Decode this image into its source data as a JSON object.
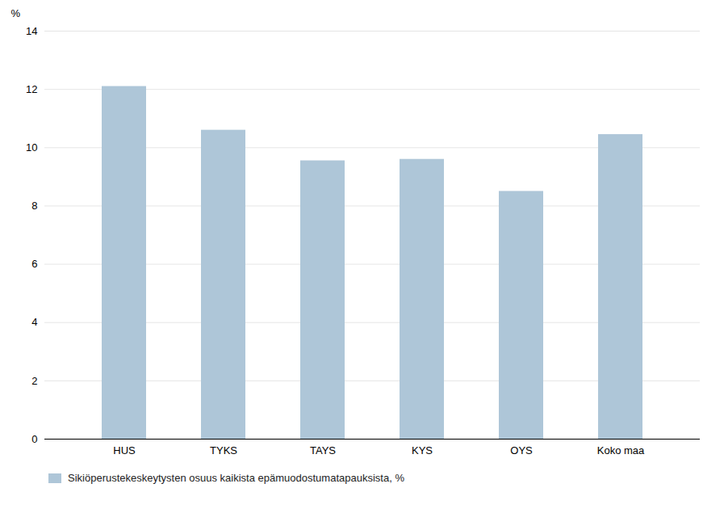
{
  "chart_data": {
    "type": "bar",
    "categories": [
      "HUS",
      "TYKS",
      "TAYS",
      "KYS",
      "OYS",
      "Koko maa"
    ],
    "series": [
      {
        "name": "Sikiöperustekeskeytysten osuus kaikista epämuodostumatapauksista, %",
        "color": "#aec6d8",
        "values": [
          12.1,
          10.6,
          9.55,
          9.6,
          8.5,
          10.45
        ]
      }
    ],
    "ylabel": "%",
    "ylim": [
      0,
      14
    ],
    "yticks": [
      0,
      2,
      4,
      6,
      8,
      10,
      12,
      14
    ],
    "grid": true,
    "legend": "bottom"
  }
}
